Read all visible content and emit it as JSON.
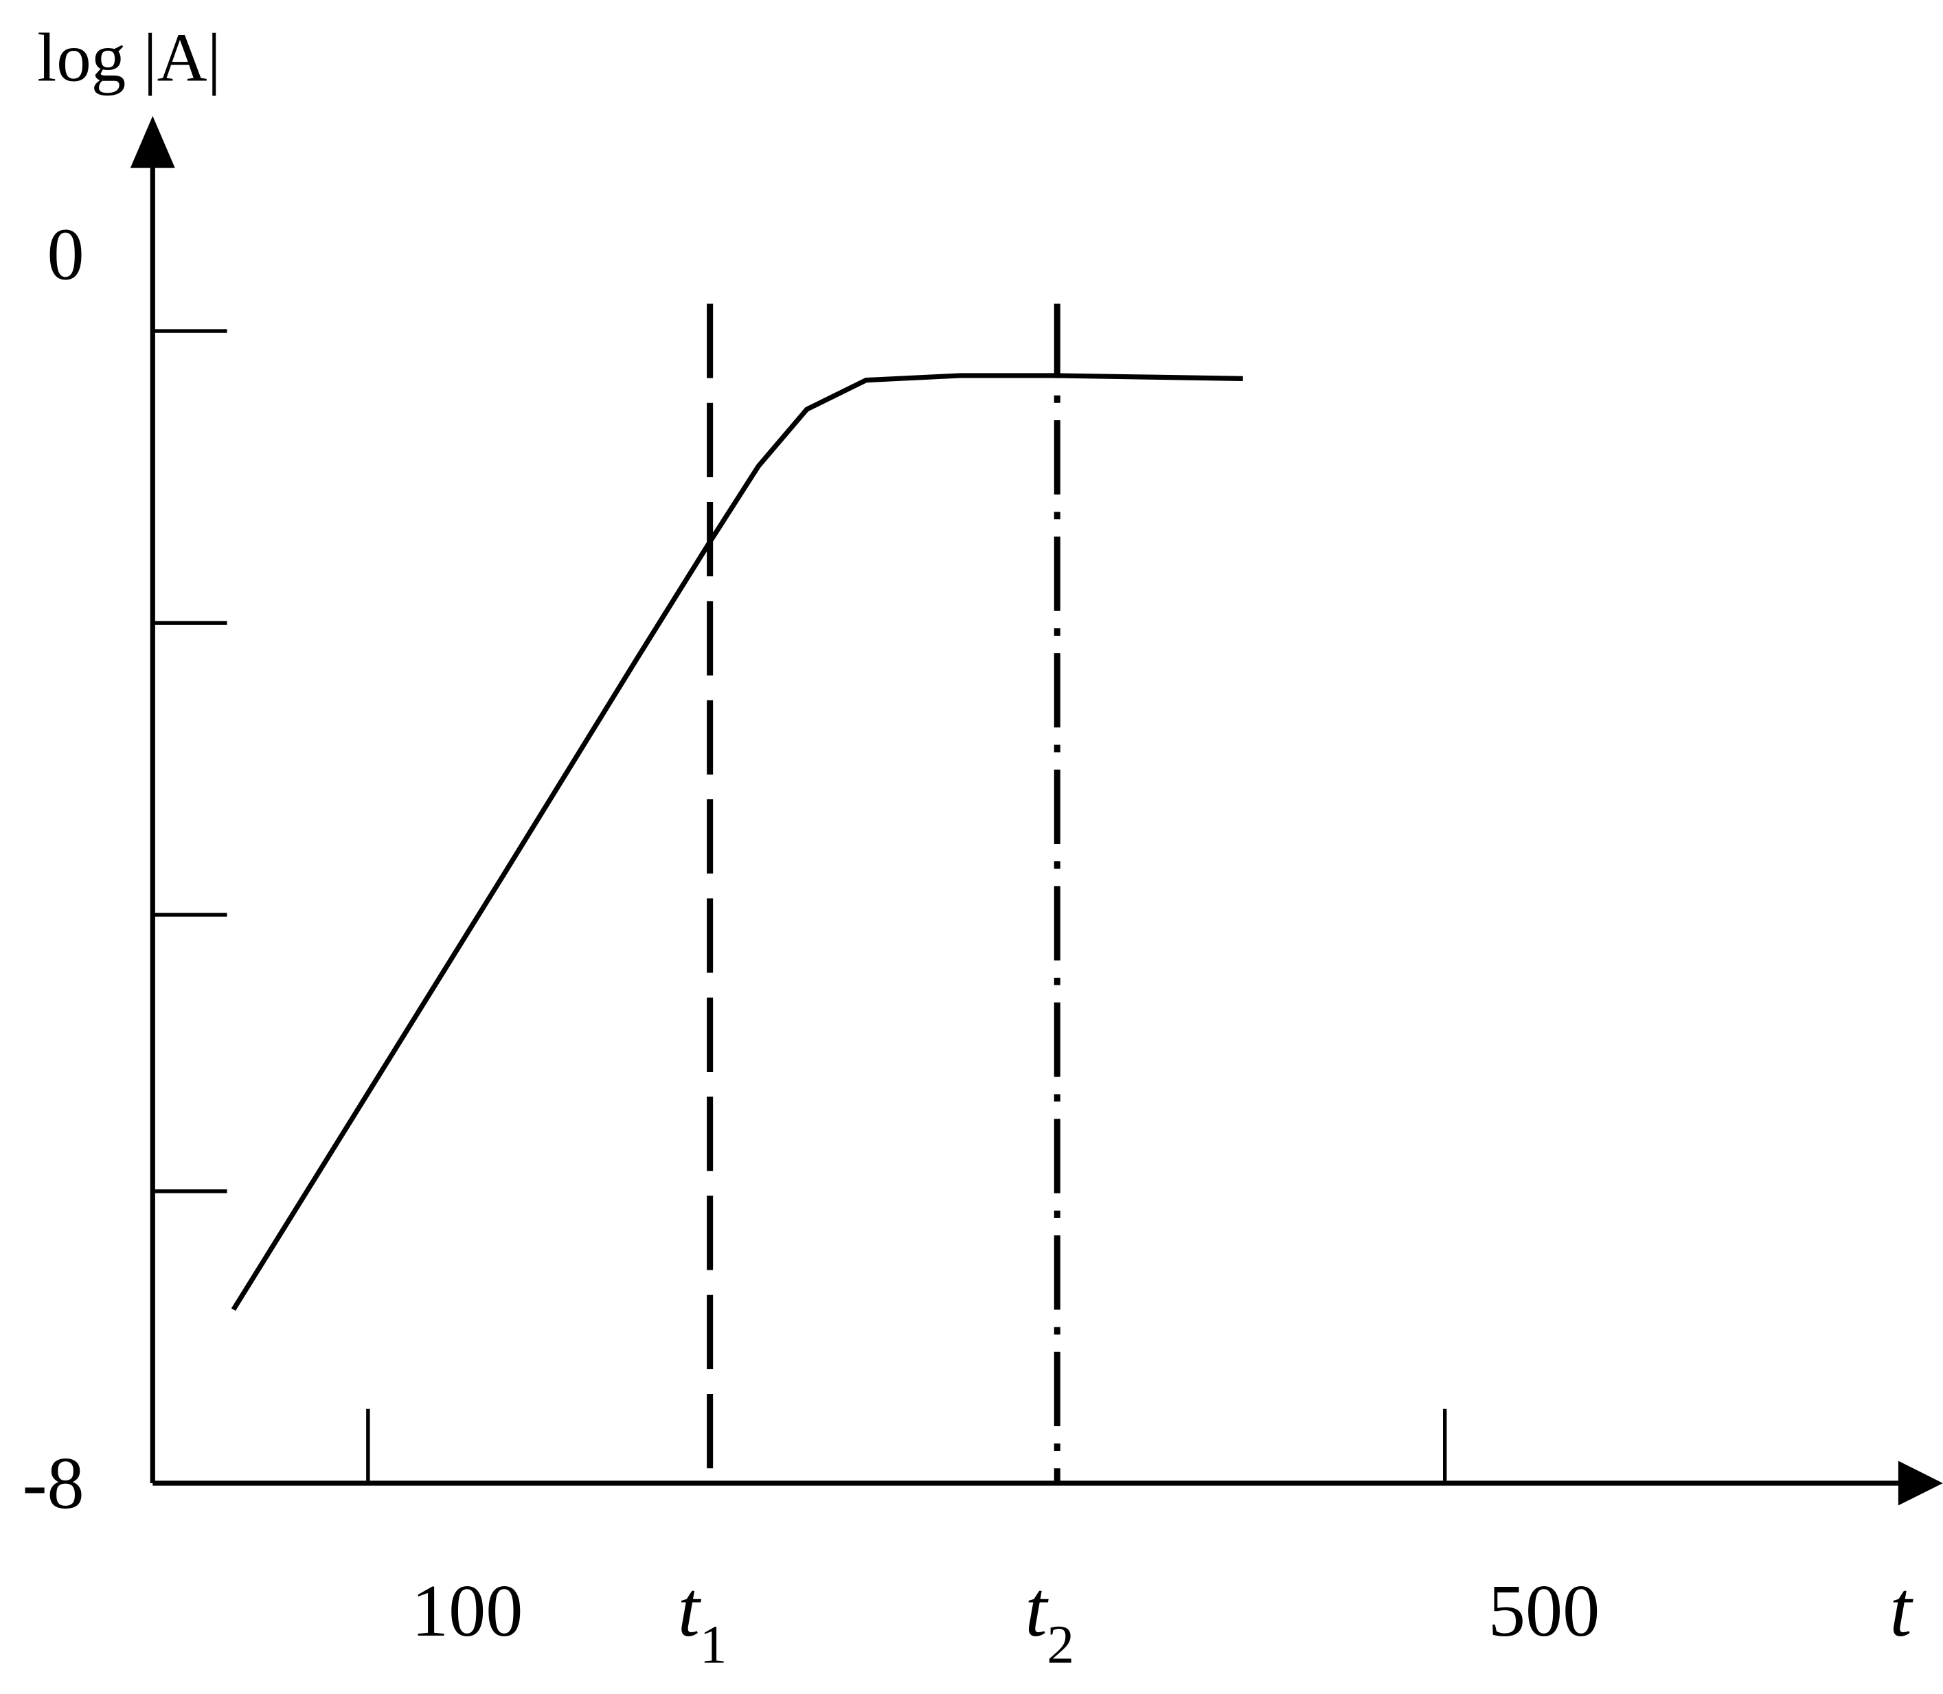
{
  "chart_data": {
    "type": "line",
    "ylabel": "log |A|",
    "xlabel": "t",
    "x": [
      50,
      100,
      150,
      200,
      226,
      245,
      263,
      285,
      320,
      355,
      390,
      425
    ],
    "series": [
      {
        "color": "#000000",
        "values": [
          -6.87,
          -5.46,
          -4.05,
          -2.63,
          -1.9,
          -1.38,
          -1.01,
          -0.82,
          -0.79,
          -0.79,
          -0.8,
          -0.81
        ]
      }
    ],
    "xlim": [
      20,
      685
    ],
    "ylim": [
      -8,
      0.9
    ],
    "xticks": [
      100,
      500
    ],
    "yticks": [
      -8,
      0
    ],
    "minor_yticks": [
      -6.1,
      -4.3,
      -2.4,
      -0.5
    ],
    "vlines": [
      {
        "value": 227,
        "label": "t",
        "subscript": "1",
        "dash": "long"
      },
      {
        "value": 356,
        "label": "t",
        "subscript": "2",
        "dash": "dashdot"
      }
    ]
  }
}
